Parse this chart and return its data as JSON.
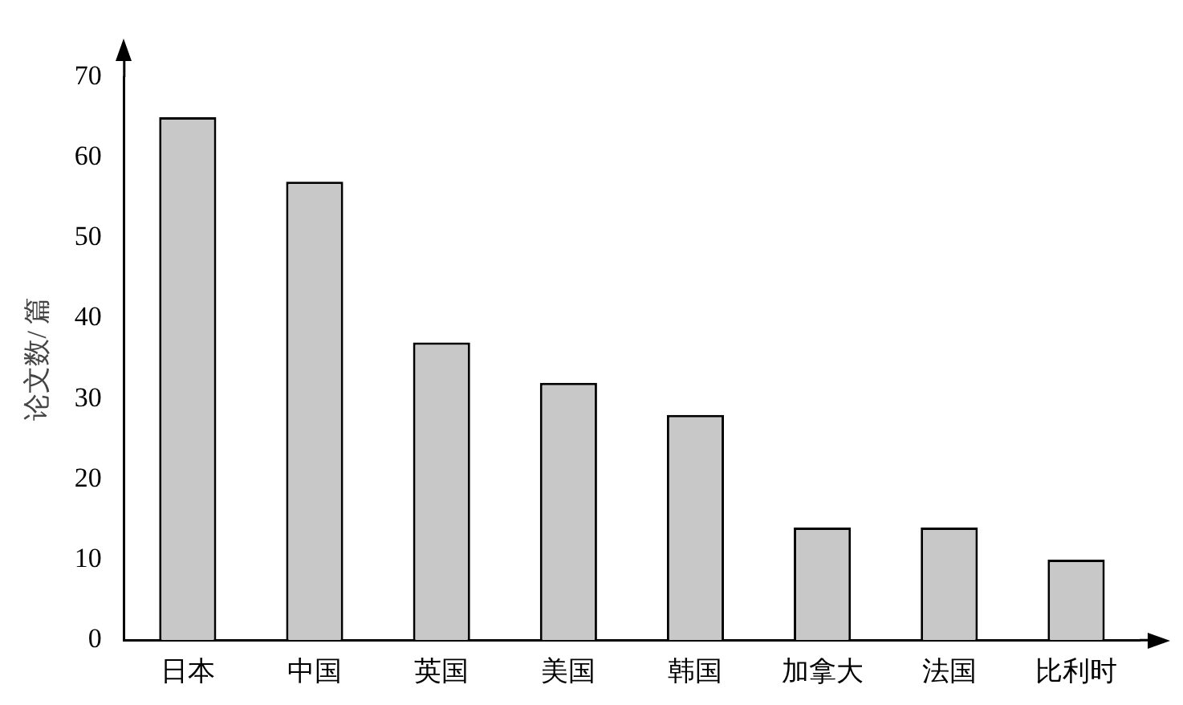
{
  "chart_data": {
    "type": "bar",
    "ylabel": "论文数/ 篇",
    "categories": [
      "日本",
      "中国",
      "英国",
      "美国",
      "韩国",
      "加拿大",
      "法国",
      "比利时"
    ],
    "values": [
      65,
      57,
      37,
      32,
      28,
      14,
      14,
      10
    ],
    "color": "#c8c8c8",
    "ylim": [
      0,
      70
    ],
    "yticks": [
      0,
      10,
      20,
      30,
      40,
      50,
      60,
      70
    ],
    "grid": false,
    "legend": false
  }
}
